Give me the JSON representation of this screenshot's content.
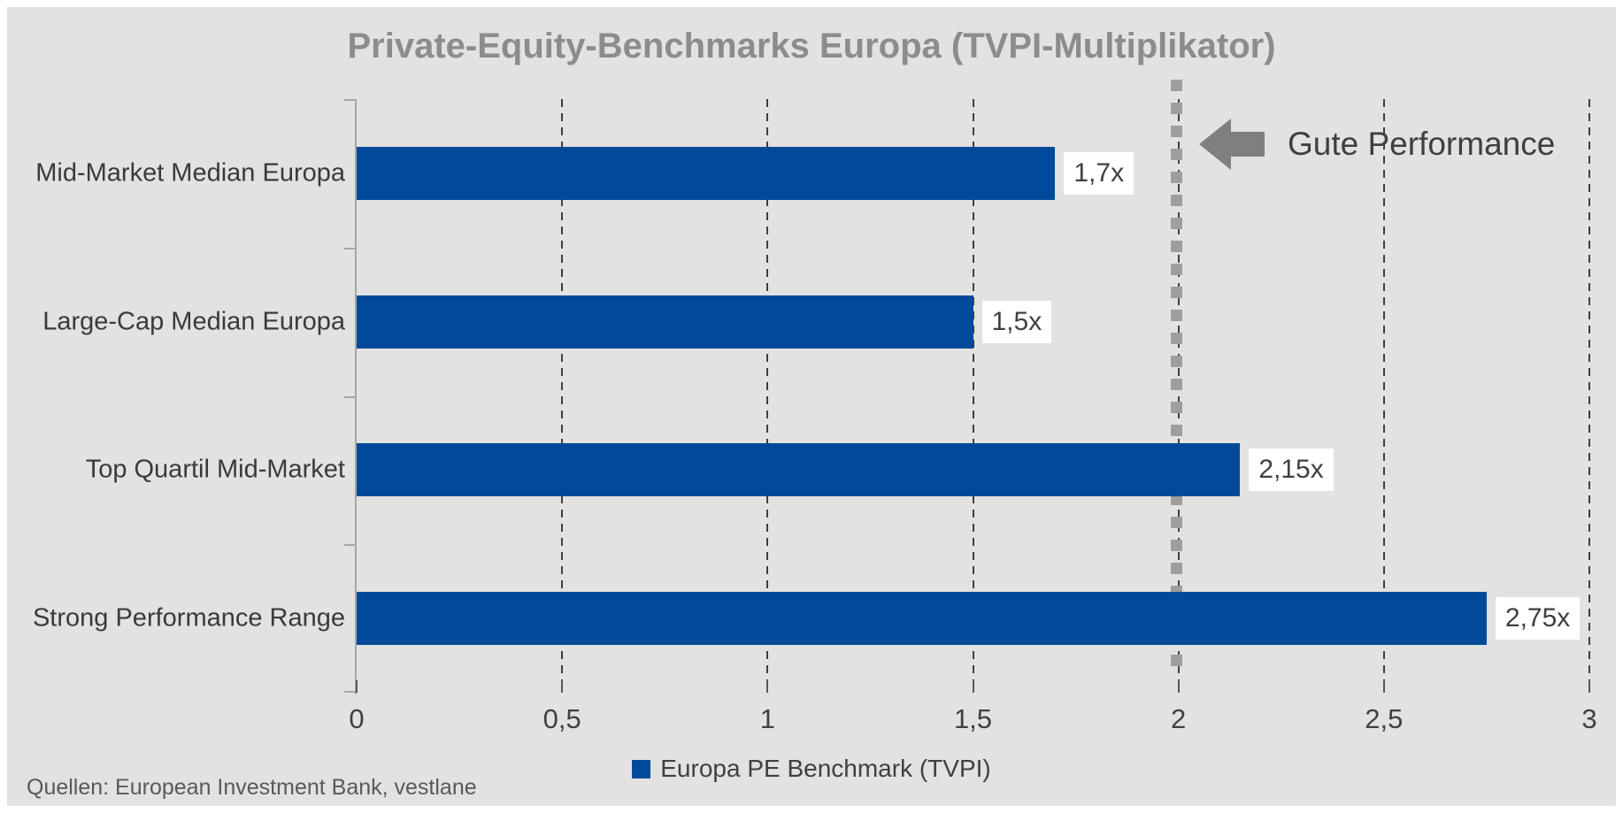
{
  "chart_data": {
    "type": "bar",
    "orientation": "horizontal",
    "title": "Private-Equity-Benchmarks Europa (TVPI-Multiplikator)",
    "categories": [
      "Mid-Market Median Europa",
      "Large-Cap Median Europa",
      "Top Quartil Mid-Market",
      "Strong Performance Range"
    ],
    "values": [
      1.7,
      1.5,
      2.15,
      2.75
    ],
    "value_labels": [
      "1,7x",
      "1,5x",
      "2,15x",
      "2,75x"
    ],
    "xlim": [
      0,
      3
    ],
    "x_ticks": [
      0,
      0.5,
      1,
      1.5,
      2,
      2.5,
      3
    ],
    "x_tick_labels": [
      "0",
      "0,5",
      "1",
      "1,5",
      "2",
      "2,5",
      "3"
    ],
    "grid": "vertical-dashed",
    "legend_label": "Europa PE Benchmark (TVPI)",
    "legend_position": "bottom-center",
    "threshold": {
      "value": 2,
      "label": "Gute Performance"
    }
  },
  "footer": {
    "source": "Quellen: European Investment Bank, vestlane"
  },
  "colors": {
    "background": "#e2e2e2",
    "bar": "#004a99",
    "axis": "#a6a6a6",
    "gridline": "#3f3f3f",
    "threshold_line": "#9e9e9e",
    "arrow": "#7f7f7f",
    "title_text": "#8c8c8c",
    "category_text": "#3a3a3a",
    "value_text": "#404040",
    "value_label_bg": "#ffffff",
    "source_text": "#595959"
  }
}
